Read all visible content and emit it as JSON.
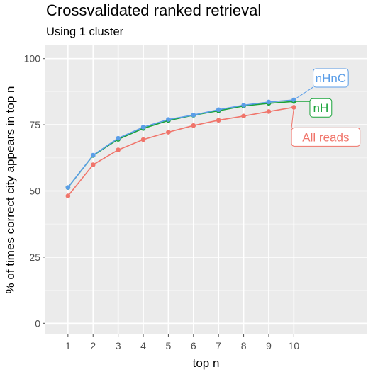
{
  "chart_data": {
    "type": "line",
    "title": "Crossvalidated ranked retrieval",
    "subtitle": "Using 1 cluster",
    "xlabel": "top n",
    "ylabel": "% of times correct city appears in top n",
    "x": [
      1,
      2,
      3,
      4,
      5,
      6,
      7,
      8,
      9,
      10
    ],
    "xlim": [
      0.1,
      12.9
    ],
    "ylim": [
      -4.2,
      105
    ],
    "yticks": [
      0,
      25,
      50,
      75,
      100
    ],
    "grid": true,
    "legend": "direct labels at line ends",
    "series": [
      {
        "name": "All reads",
        "color": "#f0756b",
        "values": [
          48.1,
          59.9,
          65.5,
          69.4,
          72.2,
          74.7,
          76.7,
          78.3,
          80.0,
          81.6
        ]
      },
      {
        "name": "nH",
        "color": "#1aa33a",
        "values": [
          51.3,
          63.4,
          69.5,
          73.6,
          76.6,
          78.6,
          80.3,
          82.1,
          83.1,
          83.8
        ]
      },
      {
        "name": "nHnC",
        "color": "#5b9ee8",
        "values": [
          51.3,
          63.5,
          69.9,
          74.1,
          77.0,
          78.7,
          80.7,
          82.4,
          83.6,
          84.4
        ]
      }
    ]
  }
}
